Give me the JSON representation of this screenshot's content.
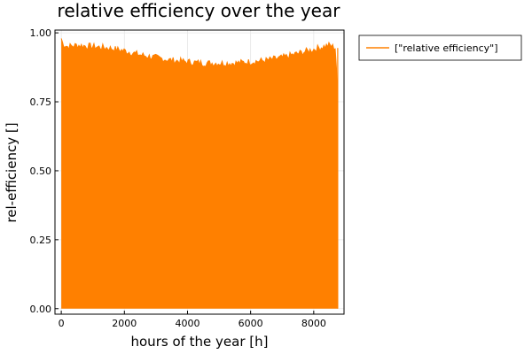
{
  "chart_data": {
    "type": "line",
    "title": "relative efficiency over the year",
    "xlabel": "hours of the year [h]",
    "ylabel": "rel-efficiency []",
    "xlim": [
      -200,
      8960
    ],
    "ylim": [
      -0.02,
      1.01
    ],
    "xticks": [
      0,
      2000,
      4000,
      6000,
      8000
    ],
    "xtick_labels": [
      "0",
      "2000",
      "4000",
      "6000",
      "8000"
    ],
    "yticks": [
      0.0,
      0.25,
      0.5,
      0.75,
      1.0
    ],
    "ytick_labels": [
      "0.00",
      "0.25",
      "0.50",
      "0.75",
      "1.00"
    ],
    "grid": true,
    "legend_position": "outer-top-right",
    "series": [
      {
        "name": "[\"relative efficiency\"]",
        "color": "#ff8000",
        "fill": "daily oscillation between 0 and the envelope",
        "x_range": [
          0,
          8760
        ],
        "min_value": 0.0,
        "envelope": {
          "x": [
            0,
            50,
            200,
            500,
            1000,
            1500,
            2000,
            2500,
            3000,
            3500,
            4000,
            4500,
            5000,
            5500,
            6000,
            6500,
            7000,
            7500,
            8000,
            8300,
            8500,
            8700,
            8760
          ],
          "y": [
            0.98,
            0.96,
            0.95,
            0.955,
            0.95,
            0.945,
            0.935,
            0.92,
            0.91,
            0.9,
            0.895,
            0.89,
            0.89,
            0.89,
            0.895,
            0.9,
            0.91,
            0.925,
            0.94,
            0.95,
            0.955,
            0.945,
            0.74
          ]
        }
      }
    ]
  }
}
